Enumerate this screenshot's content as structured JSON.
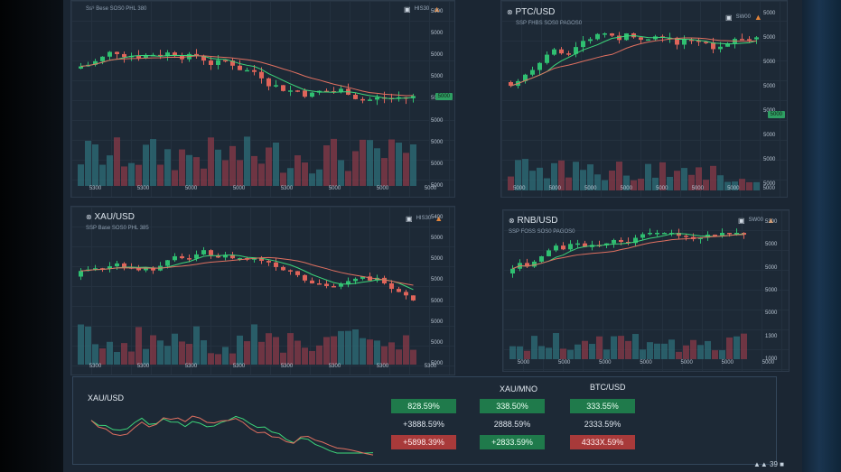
{
  "colors": {
    "up": "#2fbf71",
    "down": "#e0645a",
    "volume_up": "#2e6f7a",
    "volume_down": "#8a3a48",
    "ma_green": "#3dd67a",
    "ma_red": "#e07060",
    "background": "#1d2936"
  },
  "panels": [
    {
      "id": "p1",
      "title": "",
      "subtitle": "Ss⁹  Bese SOS0 PHL 380",
      "ctrl": "HIS30",
      "yticks": [
        "5000",
        "5000",
        "5000",
        "5000",
        "5000",
        "5000",
        "5000",
        "5000",
        "5000"
      ],
      "xticks": [
        "5300",
        "5300",
        "5000",
        "5000",
        "5300",
        "5000",
        "5000",
        "5000"
      ],
      "price_tag": "5000"
    },
    {
      "id": "p2",
      "title": "PTC/USD",
      "subtitle": "SSP  FHBS SOS0 PAGOS0",
      "ctrl": "SW00",
      "yticks": [
        "5000",
        "5000",
        "5000",
        "5000",
        "5000",
        "5000",
        "5000",
        "5000"
      ],
      "xticks": [
        "5000",
        "5000",
        "5000",
        "5000",
        "5000",
        "5000",
        "5000",
        "5000"
      ],
      "price_tag": "5000"
    },
    {
      "id": "p3",
      "title": "XAU/USD",
      "subtitle": "SSP  Base SOS0 PHL 385",
      "ctrl": "HIS30",
      "yticks": [
        "5400",
        "5000",
        "5000",
        "5000",
        "5000",
        "5000",
        "5000",
        "5000"
      ],
      "xticks": [
        "5300",
        "5300",
        "5300",
        "5300",
        "5300",
        "5300",
        "5300",
        "5300"
      ],
      "price_tag": "5000"
    },
    {
      "id": "p4",
      "title": "RNB/USD",
      "subtitle": "SSP  FOSS SOS0 PAGOS0",
      "ctrl": "SW00",
      "yticks": [
        "5300",
        "5000",
        "5000",
        "5000",
        "5000",
        "1300",
        "1000"
      ],
      "xticks": [
        "5000",
        "5000",
        "5000",
        "5000",
        "5000",
        "5000",
        "5000"
      ],
      "price_tag": "5000"
    }
  ],
  "summary": {
    "title": "XAU/USD",
    "columns": [
      "XAU/MNO",
      "BTC/USD"
    ],
    "col1": [
      {
        "v": "828.59%",
        "t": "g"
      },
      {
        "v": "+3888.59%",
        "t": "plain"
      },
      {
        "v": "+5898.39%",
        "t": "r"
      }
    ],
    "col2": [
      {
        "v": "338.50%",
        "t": "g"
      },
      {
        "v": "2888.59%",
        "t": "plain"
      },
      {
        "v": "+2833.59%",
        "t": "g"
      }
    ],
    "col3": [
      {
        "v": "333.55%",
        "t": "g"
      },
      {
        "v": "2333.59%",
        "t": "plain"
      },
      {
        "v": "4333X.59%",
        "t": "r"
      }
    ],
    "footer": "▲▲ 39 ■"
  }
}
